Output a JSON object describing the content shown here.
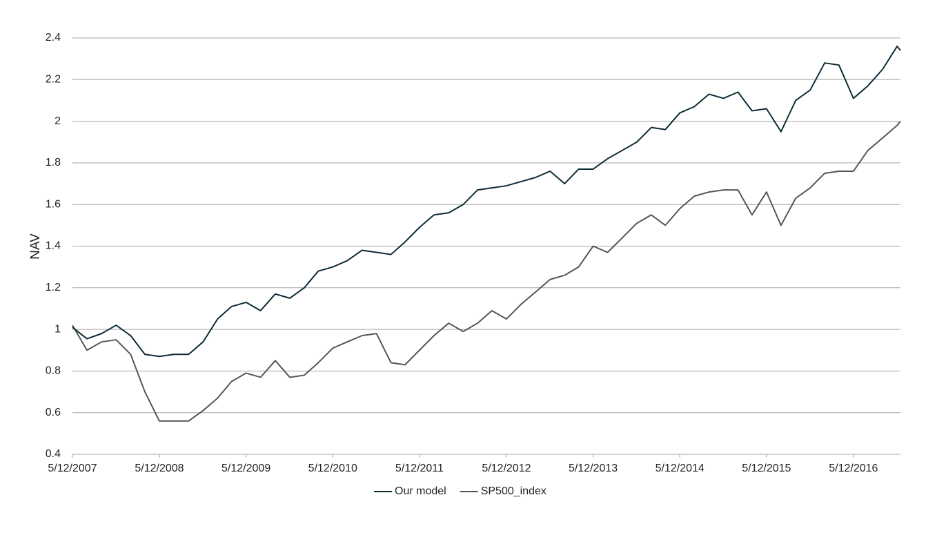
{
  "chart_data": {
    "type": "line",
    "y_label": "NAV",
    "x": [
      "2007-05-12",
      "2007-07-12",
      "2007-09-12",
      "2007-11-12",
      "2008-01-12",
      "2008-03-12",
      "2008-05-12",
      "2008-07-12",
      "2008-09-12",
      "2008-11-12",
      "2009-01-12",
      "2009-03-12",
      "2009-05-12",
      "2009-07-12",
      "2009-09-12",
      "2009-11-12",
      "2010-01-12",
      "2010-03-12",
      "2010-05-12",
      "2010-07-12",
      "2010-09-12",
      "2010-11-12",
      "2011-01-12",
      "2011-03-12",
      "2011-05-12",
      "2011-07-12",
      "2011-09-12",
      "2011-11-12",
      "2012-01-12",
      "2012-03-12",
      "2012-05-12",
      "2012-07-12",
      "2012-09-12",
      "2012-11-12",
      "2013-01-12",
      "2013-03-12",
      "2013-05-12",
      "2013-07-12",
      "2013-09-12",
      "2013-11-12",
      "2014-01-12",
      "2014-03-12",
      "2014-05-12",
      "2014-07-12",
      "2014-09-12",
      "2014-11-12",
      "2015-01-12",
      "2015-03-12",
      "2015-05-12",
      "2015-07-12",
      "2015-09-12",
      "2015-11-12",
      "2016-01-12",
      "2016-03-12",
      "2016-05-12",
      "2016-07-12",
      "2016-09-12",
      "2016-11-12",
      "2016-11-26"
    ],
    "series": [
      {
        "name": "Our model",
        "color": "#0d2b36",
        "values": [
          1.01,
          0.955,
          0.98,
          1.02,
          0.97,
          0.88,
          0.87,
          0.88,
          0.88,
          0.94,
          1.05,
          1.11,
          1.13,
          1.09,
          1.17,
          1.15,
          1.2,
          1.28,
          1.3,
          1.33,
          1.38,
          1.37,
          1.36,
          1.42,
          1.49,
          1.55,
          1.56,
          1.6,
          1.67,
          1.68,
          1.69,
          1.71,
          1.73,
          1.76,
          1.7,
          1.77,
          1.77,
          1.82,
          1.86,
          1.9,
          1.97,
          1.96,
          2.04,
          2.07,
          2.13,
          2.11,
          2.14,
          2.05,
          2.06,
          1.95,
          2.1,
          2.15,
          2.28,
          2.27,
          2.11,
          2.17,
          2.25,
          2.36,
          2.34
        ]
      },
      {
        "name": "SP500_index",
        "color": "#555555",
        "values": [
          1.02,
          0.9,
          0.94,
          0.95,
          0.88,
          0.7,
          0.56,
          0.56,
          0.56,
          0.61,
          0.67,
          0.75,
          0.79,
          0.77,
          0.85,
          0.77,
          0.78,
          0.84,
          0.91,
          0.94,
          0.97,
          0.98,
          0.84,
          0.83,
          0.9,
          0.97,
          1.03,
          0.99,
          1.03,
          1.09,
          1.05,
          1.12,
          1.18,
          1.24,
          1.26,
          1.3,
          1.4,
          1.37,
          1.44,
          1.51,
          1.55,
          1.5,
          1.58,
          1.64,
          1.66,
          1.67,
          1.67,
          1.55,
          1.66,
          1.5,
          1.63,
          1.68,
          1.75,
          1.76,
          1.76,
          1.86,
          1.92,
          1.98,
          2.0
        ]
      }
    ],
    "xlim": [
      "2007-05-12",
      "2016-11-26"
    ],
    "xticks": [
      {
        "value": "2007-05-12",
        "label": "5/12/2007"
      },
      {
        "value": "2008-05-12",
        "label": "5/12/2008"
      },
      {
        "value": "2009-05-12",
        "label": "5/12/2009"
      },
      {
        "value": "2010-05-12",
        "label": "5/12/2010"
      },
      {
        "value": "2011-05-12",
        "label": "5/12/2011"
      },
      {
        "value": "2012-05-12",
        "label": "5/12/2012"
      },
      {
        "value": "2013-05-12",
        "label": "5/12/2013"
      },
      {
        "value": "2014-05-12",
        "label": "5/12/2014"
      },
      {
        "value": "2015-05-12",
        "label": "5/12/2015"
      },
      {
        "value": "2016-05-12",
        "label": "5/12/2016"
      }
    ],
    "ylim": [
      0.4,
      2.4
    ],
    "yticks": [
      0.4,
      0.6,
      0.8,
      1,
      1.2,
      1.4,
      1.6,
      1.8,
      2,
      2.2,
      2.4
    ],
    "grid": true,
    "legend": "bottom"
  }
}
